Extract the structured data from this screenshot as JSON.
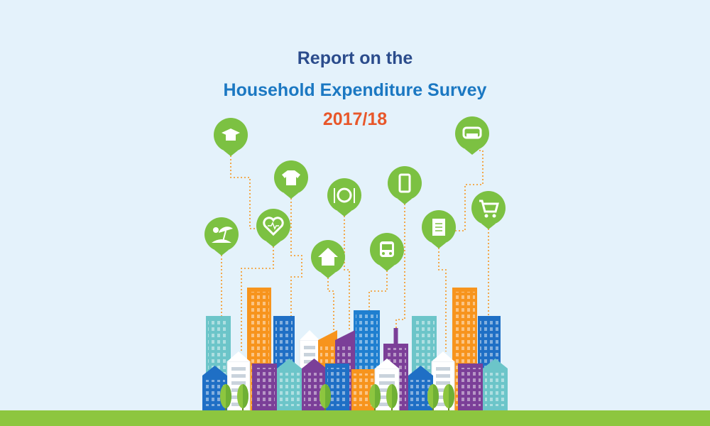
{
  "header": {
    "line1": "Report on the",
    "line2": "Household Expenditure Survey",
    "line3": "2017/18"
  }
}
